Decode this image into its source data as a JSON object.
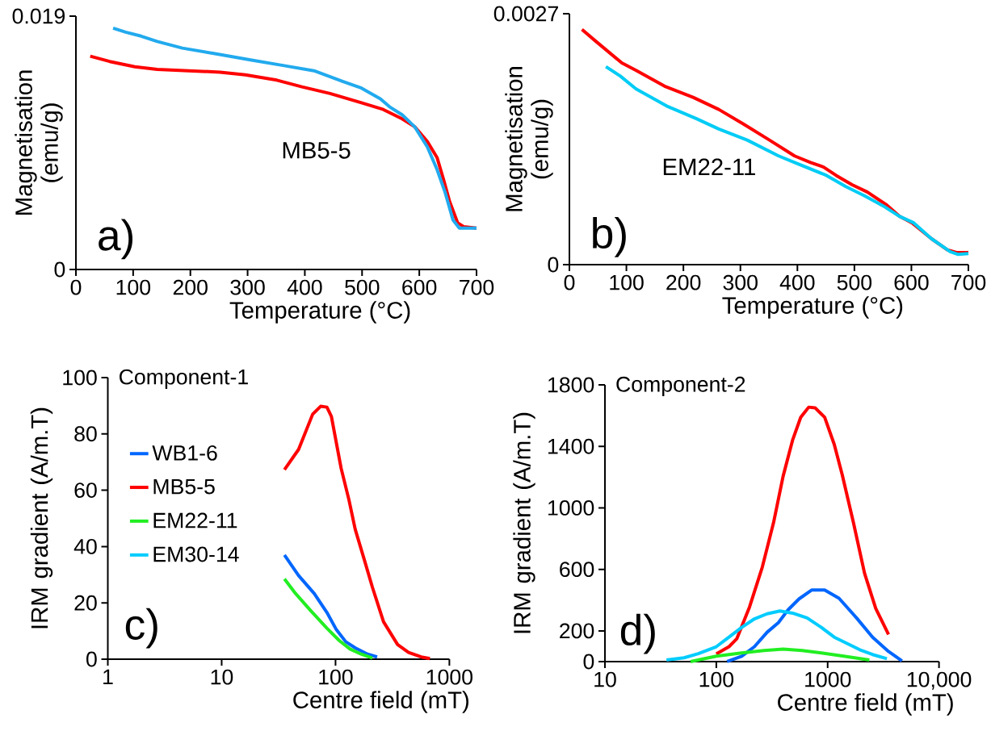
{
  "chart_data": [
    {
      "type": "line",
      "xlabel": "Temperature (°C)",
      "ylabel": "Magnetisation (emu/g)",
      "annotations": [
        "MB5-5",
        "a)"
      ],
      "xlim": [
        0,
        700
      ],
      "ylim": [
        0,
        0.019
      ],
      "xticks": [
        0,
        100,
        200,
        300,
        400,
        500,
        600,
        700
      ],
      "yticks": [
        0,
        0.019
      ],
      "grid": false,
      "legend": false,
      "series": [
        {
          "color": "#ff0000",
          "x": [
            25,
            59,
            103,
            142,
            197,
            252,
            296,
            351,
            395,
            444,
            499,
            537,
            570,
            592,
            614,
            631,
            642,
            653,
            667,
            678,
            700
          ],
          "values": [
            0.016,
            0.0156,
            0.0152,
            0.015,
            0.0149,
            0.0148,
            0.0146,
            0.0142,
            0.0137,
            0.0132,
            0.0125,
            0.012,
            0.0113,
            0.0107,
            0.0096,
            0.0084,
            0.0068,
            0.0051,
            0.0035,
            0.0032,
            0.0031
          ]
        },
        {
          "color": "#22aaee",
          "x": [
            65,
            87,
            114,
            142,
            186,
            241,
            307,
            362,
            416,
            466,
            499,
            532,
            548,
            570,
            592,
            614,
            631,
            645,
            659,
            670,
            700
          ],
          "values": [
            0.0181,
            0.0178,
            0.0175,
            0.0171,
            0.0166,
            0.0162,
            0.0157,
            0.0153,
            0.0149,
            0.0141,
            0.0136,
            0.0128,
            0.0122,
            0.0116,
            0.0107,
            0.0092,
            0.0075,
            0.0058,
            0.0037,
            0.0031,
            0.0031
          ]
        }
      ]
    },
    {
      "type": "line",
      "xlabel": "Temperature (°C)",
      "ylabel": "Magnetisation (emu/g)",
      "annotations": [
        "EM22-11",
        "b)"
      ],
      "xlim": [
        0,
        700
      ],
      "ylim": [
        0,
        0.0027
      ],
      "xticks": [
        0,
        100,
        200,
        300,
        400,
        500,
        600,
        700
      ],
      "yticks": [
        0,
        0.0027
      ],
      "grid": false,
      "legend": false,
      "series": [
        {
          "color": "#ff0000",
          "x": [
            22,
            45,
            92,
            117,
            167,
            217,
            262,
            306,
            351,
            395,
            423,
            446,
            468,
            496,
            523,
            557,
            579,
            601,
            635,
            663,
            679,
            700
          ],
          "values": [
            0.00253,
            0.00241,
            0.00217,
            0.00209,
            0.00192,
            0.0018,
            0.00167,
            0.00151,
            0.00134,
            0.00117,
            0.0011,
            0.00105,
            0.00096,
            0.00086,
            0.00078,
            0.00064,
            0.00052,
            0.00045,
            0.00028,
            0.00016,
            0.00013,
            0.00013
          ]
        },
        {
          "color": "#00ccf5",
          "x": [
            64,
            89,
            117,
            173,
            223,
            262,
            312,
            367,
            395,
            451,
            485,
            518,
            551,
            579,
            604,
            635,
            668,
            682,
            700
          ],
          "values": [
            0.00213,
            0.00203,
            0.00189,
            0.0017,
            0.00157,
            0.00146,
            0.00134,
            0.00117,
            0.0011,
            0.00096,
            0.00084,
            0.00074,
            0.00063,
            0.00052,
            0.00045,
            0.00028,
            0.00014,
            0.00011,
            0.00012
          ]
        }
      ]
    },
    {
      "type": "line",
      "title": "Component-1",
      "xlabel": "Centre field (mT)",
      "ylabel": "IRM gradient (A/m.T)",
      "annotations": [
        "c)"
      ],
      "log": "x",
      "xlim": [
        1,
        1000
      ],
      "ylim": [
        0,
        100
      ],
      "xticks": [
        1,
        10,
        100,
        1000
      ],
      "yticks": [
        0,
        20,
        40,
        60,
        80,
        100
      ],
      "grid": false,
      "legend": "left",
      "series": [
        {
          "name": "WB1-6",
          "color": "#0066ff",
          "x": [
            35.6,
            47.4,
            65,
            84,
            101,
            123,
            149,
            191,
            232
          ],
          "values": [
            37.0,
            29.7,
            23.3,
            16.6,
            10.7,
            6.2,
            4.0,
            1.8,
            0.8
          ]
        },
        {
          "name": "MB5-5",
          "color": "#ff0000",
          "x": [
            35.6,
            47.4,
            63,
            74,
            84,
            92,
            112,
            131,
            149,
            180,
            211,
            264,
            351,
            438,
            565,
            675
          ],
          "values": [
            67.3,
            74.5,
            87.0,
            89.8,
            89.5,
            86.2,
            67.8,
            56.7,
            46.1,
            35.0,
            25.5,
            13.3,
            5.2,
            2.4,
            0.8,
            0.2
          ]
        },
        {
          "name": "EM22-11",
          "color": "#22ee22",
          "x": [
            35.6,
            44.6,
            61,
            84,
            108,
            134,
            168,
            211
          ],
          "values": [
            28.5,
            23.3,
            17.1,
            11.0,
            6.6,
            3.6,
            1.8,
            0.4
          ]
        },
        {
          "name": "EM30-14",
          "color": "#00ccff"
        }
      ]
    },
    {
      "type": "line",
      "title": "Component-2",
      "xlabel": "Centre field (mT)",
      "ylabel": "IRM gradient (A/m.T)",
      "annotations": [
        "d)"
      ],
      "log": "x",
      "xlim": [
        10,
        10000
      ],
      "ylim": [
        0,
        1800
      ],
      "xticks": [
        10,
        100,
        1000,
        {
          "value": 10000,
          "label": "10,000"
        }
      ],
      "yticks": [
        0,
        200,
        600,
        1000,
        1400,
        1800
      ],
      "grid": false,
      "legend": false,
      "series": [
        {
          "color": "#ff0000",
          "x": [
            100,
            130,
            153,
            199,
            259,
            327,
            398,
            486,
            573,
            676,
            771,
            940,
            1146,
            1351,
            1703,
            2146,
            2704,
            3522
          ],
          "values": [
            50,
            97,
            149,
            356,
            615,
            905,
            1205,
            1444,
            1589,
            1655,
            1651,
            1589,
            1413,
            1216,
            905,
            574,
            346,
            176
          ]
        },
        {
          "color": "#0066ff",
          "x": [
            125,
            169,
            220,
            286,
            361,
            440,
            554,
            722,
            940,
            1265,
            1819,
            2531,
            3522,
            4650
          ],
          "values": [
            0,
            35,
            97,
            191,
            253,
            336,
            408,
            466,
            466,
            412,
            284,
            159,
            66,
            4
          ]
        },
        {
          "color": "#00ccff",
          "x": [
            35.7,
            51.4,
            69,
            100,
            130,
            169,
            220,
            286,
            373,
            486,
            654,
            879,
            1146,
            1493,
            1944,
            2531,
            3404
          ],
          "values": [
            10,
            25,
            52,
            97,
            159,
            222,
            278,
            311,
            329,
            315,
            284,
            222,
            159,
            118,
            77,
            46,
            19
          ]
        },
        {
          "color": "#22ee22",
          "x": [
            58.7,
            100,
            169,
            268,
            398,
            591,
            879,
            1396,
            2371
          ],
          "values": [
            0,
            35,
            56,
            72,
            81,
            72,
            56,
            35,
            10
          ]
        }
      ]
    }
  ]
}
